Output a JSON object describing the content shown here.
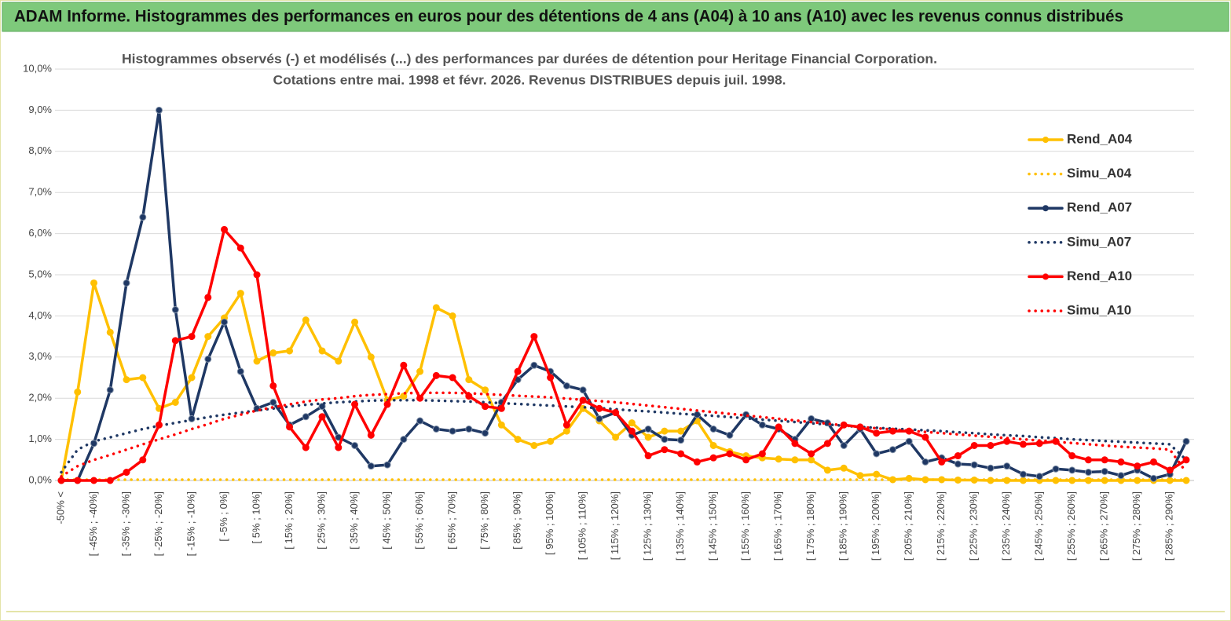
{
  "chart_data": {
    "type": "line",
    "title": "ADAM Informe. Histogrammes des performances en euros pour des détentions de 4 ans (A04) à 10 ans (A10) avec les revenus connus distribués",
    "subtitle": [
      "Histogrammes observés (-) et modélisés (...) des performances par durées de détention pour Heritage Financial Corporation.",
      "Cotations entre mai. 1998 et févr. 2026. Revenus DISTRIBUES depuis juil. 1998."
    ],
    "categories": [
      "-50% <",
      null,
      "[ -45% ; -40%]",
      null,
      "[ -35% ; -30%]",
      null,
      "[ -25% ; -20%]",
      null,
      "[ -15% ; -10%]",
      null,
      "[ -5% ; 0%]",
      null,
      "[ 5% ; 10%]",
      null,
      "[ 15% ; 20%]",
      null,
      "[ 25% ; 30%]",
      null,
      "[ 35% ; 40%]",
      null,
      "[ 45% ; 50%]",
      null,
      "[ 55% ; 60%]",
      null,
      "[ 65% ; 70%]",
      null,
      "[ 75% ; 80%]",
      null,
      "[ 85% ; 90%]",
      null,
      "[ 95% ; 100%]",
      null,
      "[ 105% ; 110%]",
      null,
      "[ 115% ; 120%]",
      null,
      "[ 125% ; 130%]",
      null,
      "[ 135% ; 140%]",
      null,
      "[ 145% ; 150%]",
      null,
      "[ 155% ; 160%]",
      null,
      "[ 165% ; 170%]",
      null,
      "[ 175% ; 180%]",
      null,
      "[ 185% ; 190%]",
      null,
      "[ 195% ; 200%]",
      null,
      "[ 205% ; 210%]",
      null,
      "[ 215% ; 220%]",
      null,
      "[ 225% ; 230%]",
      null,
      "[ 235% ; 240%]",
      null,
      "[ 245% ; 250%]",
      null,
      "[ 255% ; 260%]",
      null,
      "[ 265% ; 270%]",
      null,
      "[ 275% ; 280%]",
      null,
      "[ 285% ; 290%]",
      null
    ],
    "ylim": [
      0,
      10
    ],
    "yticks": [
      {
        "value": 0,
        "label": "0,0%"
      },
      {
        "value": 1,
        "label": "1,0%"
      },
      {
        "value": 2,
        "label": "2,0%"
      },
      {
        "value": 3,
        "label": "3,0%"
      },
      {
        "value": 4,
        "label": "4,0%"
      },
      {
        "value": 5,
        "label": "5,0%"
      },
      {
        "value": 6,
        "label": "6,0%"
      },
      {
        "value": 7,
        "label": "7,0%"
      },
      {
        "value": 8,
        "label": "8,0%"
      },
      {
        "value": 9,
        "label": "9,0%"
      },
      {
        "value": 10,
        "label": "10,0%"
      }
    ],
    "grid": true,
    "legend": "right",
    "series": [
      {
        "name": "Rend_A04",
        "color": "#ffc000",
        "style": "solid",
        "markers": true,
        "values": [
          0,
          2.15,
          4.8,
          3.6,
          2.45,
          2.5,
          1.75,
          1.9,
          2.5,
          3.5,
          3.95,
          4.55,
          2.9,
          3.1,
          3.15,
          3.9,
          3.15,
          2.9,
          3.85,
          3.0,
          1.95,
          2.05,
          2.65,
          4.2,
          4.0,
          2.45,
          2.2,
          1.35,
          1.0,
          0.85,
          0.95,
          1.2,
          1.75,
          1.45,
          1.05,
          1.4,
          1.05,
          1.2,
          1.2,
          1.45,
          0.85,
          0.7,
          0.6,
          0.55,
          0.52,
          0.5,
          0.5,
          0.25,
          0.3,
          0.12,
          0.15,
          0.02,
          0.05,
          0.02,
          0.02,
          0.01,
          0.01,
          0,
          0,
          0,
          0,
          0,
          0,
          0,
          0,
          0,
          0,
          0,
          0,
          0
        ]
      },
      {
        "name": "Simu_A04",
        "color": "#ffc000",
        "style": "dotted",
        "markers": false,
        "values": [
          0.02,
          0.02,
          0.02,
          0.02,
          0.02,
          0.02,
          0.02,
          0.02,
          0.02,
          0.02,
          0.02,
          0.02,
          0.02,
          0.02,
          0.02,
          0.02,
          0.02,
          0.02,
          0.02,
          0.02,
          0.02,
          0.02,
          0.02,
          0.02,
          0.02,
          0.02,
          0.02,
          0.02,
          0.02,
          0.02,
          0.02,
          0.02,
          0.02,
          0.02,
          0.02,
          0.02,
          0.02,
          0.02,
          0.02,
          0.02,
          0.02,
          0.02,
          0.02,
          0.02,
          0.02,
          0.02,
          0.02,
          0.02,
          0.02,
          0.02,
          0.02,
          0.02,
          0.02,
          0.02,
          0.02,
          0.02,
          0.02,
          0.02,
          0.02,
          0.02,
          0.02,
          0.02,
          0.02,
          0.02,
          0.02,
          0.02,
          0.02,
          0.02,
          0.02,
          0.02
        ]
      },
      {
        "name": "Rend_A07",
        "color": "#1f3864",
        "style": "solid",
        "markers": true,
        "values": [
          0,
          0,
          0.9,
          2.2,
          4.8,
          6.4,
          9.0,
          4.15,
          1.5,
          2.95,
          3.85,
          2.65,
          1.75,
          1.9,
          1.35,
          1.55,
          1.8,
          1.05,
          0.85,
          0.35,
          0.38,
          1.0,
          1.45,
          1.25,
          1.2,
          1.25,
          1.15,
          1.9,
          2.45,
          2.8,
          2.65,
          2.3,
          2.2,
          1.5,
          1.65,
          1.1,
          1.25,
          1.0,
          0.98,
          1.6,
          1.25,
          1.1,
          1.6,
          1.35,
          1.25,
          1.0,
          1.5,
          1.4,
          0.85,
          1.25,
          0.65,
          0.75,
          0.95,
          0.45,
          0.55,
          0.4,
          0.38,
          0.3,
          0.35,
          0.15,
          0.1,
          0.28,
          0.25,
          0.2,
          0.22,
          0.12,
          0.25,
          0.05,
          0.15,
          0.95
        ]
      },
      {
        "name": "Simu_A07",
        "color": "#1f3864",
        "style": "dotted",
        "markers": false,
        "values": [
          0.2,
          0.75,
          0.95,
          1.05,
          1.15,
          1.25,
          1.33,
          1.4,
          1.47,
          1.54,
          1.6,
          1.65,
          1.7,
          1.75,
          1.8,
          1.84,
          1.87,
          1.9,
          1.92,
          1.94,
          1.95,
          1.95,
          1.95,
          1.94,
          1.93,
          1.92,
          1.9,
          1.88,
          1.86,
          1.84,
          1.82,
          1.8,
          1.78,
          1.76,
          1.73,
          1.7,
          1.68,
          1.65,
          1.62,
          1.6,
          1.57,
          1.54,
          1.51,
          1.48,
          1.45,
          1.42,
          1.39,
          1.36,
          1.33,
          1.3,
          1.28,
          1.26,
          1.24,
          1.22,
          1.2,
          1.17,
          1.15,
          1.12,
          1.1,
          1.08,
          1.05,
          1.03,
          1.0,
          0.98,
          0.96,
          0.94,
          0.92,
          0.9,
          0.88,
          0.5
        ]
      },
      {
        "name": "Rend_A10",
        "color": "#ff0000",
        "style": "solid",
        "markers": true,
        "values": [
          0,
          0,
          0,
          0,
          0.2,
          0.5,
          1.35,
          3.4,
          3.5,
          4.45,
          6.1,
          5.65,
          5.0,
          2.3,
          1.3,
          0.8,
          1.55,
          0.8,
          1.85,
          1.1,
          1.85,
          2.8,
          2.0,
          2.55,
          2.5,
          2.05,
          1.8,
          1.75,
          2.65,
          3.5,
          2.5,
          1.35,
          1.95,
          1.75,
          1.65,
          1.2,
          0.6,
          0.75,
          0.65,
          0.45,
          0.55,
          0.65,
          0.5,
          0.65,
          1.3,
          0.9,
          0.65,
          0.9,
          1.35,
          1.3,
          1.15,
          1.2,
          1.2,
          1.05,
          0.45,
          0.6,
          0.85,
          0.85,
          0.95,
          0.88,
          0.9,
          0.95,
          0.6,
          0.5,
          0.5,
          0.45,
          0.35,
          0.45,
          0.25,
          0.5
        ]
      },
      {
        "name": "Simu_A10",
        "color": "#ff0000",
        "style": "dotted",
        "markers": false,
        "values": [
          0.1,
          0.35,
          0.5,
          0.62,
          0.75,
          0.88,
          1.0,
          1.12,
          1.25,
          1.37,
          1.5,
          1.6,
          1.7,
          1.78,
          1.85,
          1.92,
          1.97,
          2.0,
          2.05,
          2.08,
          2.1,
          2.12,
          2.13,
          2.13,
          2.13,
          2.12,
          2.1,
          2.08,
          2.06,
          2.04,
          2.02,
          1.99,
          1.96,
          1.93,
          1.9,
          1.86,
          1.82,
          1.78,
          1.74,
          1.7,
          1.66,
          1.62,
          1.58,
          1.54,
          1.5,
          1.46,
          1.42,
          1.38,
          1.34,
          1.3,
          1.27,
          1.24,
          1.21,
          1.18,
          1.15,
          1.12,
          1.09,
          1.06,
          1.03,
          1.0,
          0.97,
          0.94,
          0.91,
          0.88,
          0.85,
          0.82,
          0.8,
          0.78,
          0.75,
          0.2
        ]
      }
    ]
  }
}
